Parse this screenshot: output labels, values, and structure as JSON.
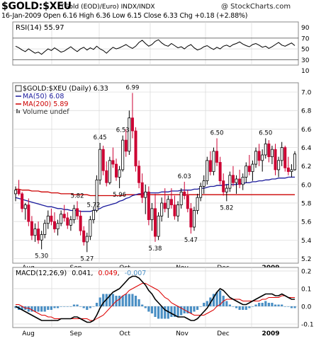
{
  "header": {
    "title": "$GOLD:$XEU",
    "subtitle": "(Gold (EOD)/Euro)  INDX/INDX",
    "copyright": "@ StockCharts.com",
    "ohlc": "16-Jan-2009   Open 6.16  High 6.36  Low 6.15  Close 6.33  Chg +0.18 (+2.88%)"
  },
  "colors": {
    "up": "#000000",
    "down": "#cc0033",
    "ma50": "#1a1a9c",
    "ma200": "#cc0000",
    "volume": "#666666",
    "macd_line": "#000000",
    "macd_signal": "#dd0000",
    "histogram": "#4a8fc4",
    "grid": "#d8d8d8"
  },
  "x_axis_labels": [
    "Aug",
    "Sep",
    "Oct",
    "Nov",
    "Dec",
    "2009"
  ],
  "chart_data": [
    {
      "type": "line",
      "name": "rsi_panel",
      "legend": "RSI(14) 55.97",
      "ylim": [
        20,
        100
      ],
      "ticks": [
        90,
        70,
        50,
        30,
        10
      ],
      "reference_lines": [
        70,
        30
      ],
      "values": [
        55,
        52,
        48,
        45,
        50,
        46,
        42,
        44,
        40,
        45,
        50,
        47,
        52,
        48,
        44,
        46,
        50,
        54,
        49,
        45,
        50,
        53,
        48,
        52,
        49,
        55,
        50,
        47,
        42,
        48,
        53,
        50,
        52,
        55,
        58,
        54,
        51,
        55,
        62,
        66,
        60,
        55,
        58,
        64,
        67,
        61,
        57,
        55,
        60,
        56,
        52,
        54,
        50,
        55,
        58,
        52,
        48,
        50,
        54,
        56,
        52,
        49,
        53,
        50,
        55,
        57,
        54,
        58,
        60,
        63,
        59,
        56,
        54,
        58,
        60,
        57,
        53,
        55,
        51,
        54,
        58,
        62,
        57,
        55,
        58,
        61,
        56
      ]
    },
    {
      "type": "candlestick",
      "name": "price_panel",
      "legend": {
        "symbol": "$GOLD:$XEU (Daily) 6.33",
        "ma50": "MA(50) 6.08",
        "ma200": "MA(200) 5.89",
        "volume": "Volume undef"
      },
      "ylim": [
        5.15,
        7.1
      ],
      "ticks": [
        7.0,
        6.8,
        6.6,
        6.4,
        6.2,
        6.0,
        5.8,
        5.6,
        5.4,
        5.2
      ],
      "annotations": [
        {
          "label": "5.30",
          "value": 5.3,
          "i": 8
        },
        {
          "label": "5.27",
          "value": 5.27,
          "i": 22
        },
        {
          "label": "5.82",
          "value": 5.82,
          "i": 19
        },
        {
          "label": "5.72",
          "value": 5.72,
          "i": 24
        },
        {
          "label": "6.45",
          "value": 6.45,
          "i": 26
        },
        {
          "label": "5.96",
          "value": 5.96,
          "i": 32
        },
        {
          "label": "6.53",
          "value": 6.53,
          "i": 33
        },
        {
          "label": "6.99",
          "value": 6.99,
          "i": 36
        },
        {
          "label": "5.38",
          "value": 5.38,
          "i": 43
        },
        {
          "label": "6.03",
          "value": 6.03,
          "i": 52
        },
        {
          "label": "5.47",
          "value": 5.47,
          "i": 54
        },
        {
          "label": "6.50",
          "value": 6.5,
          "i": 62
        },
        {
          "label": "5.82",
          "value": 5.82,
          "i": 65
        },
        {
          "label": "6.50",
          "value": 6.5,
          "i": 77
        }
      ],
      "ohlc": [
        [
          5.9,
          5.98,
          5.82,
          5.94
        ],
        [
          5.94,
          6.05,
          5.88,
          5.9
        ],
        [
          5.9,
          5.92,
          5.7,
          5.74
        ],
        [
          5.74,
          5.8,
          5.62,
          5.78
        ],
        [
          5.78,
          5.85,
          5.55,
          5.6
        ],
        [
          5.6,
          5.66,
          5.4,
          5.45
        ],
        [
          5.45,
          5.58,
          5.38,
          5.52
        ],
        [
          5.52,
          5.6,
          5.36,
          5.4
        ],
        [
          5.4,
          5.5,
          5.3,
          5.46
        ],
        [
          5.46,
          5.62,
          5.42,
          5.58
        ],
        [
          5.58,
          5.72,
          5.52,
          5.66
        ],
        [
          5.66,
          5.74,
          5.56,
          5.6
        ],
        [
          5.6,
          5.7,
          5.48,
          5.52
        ],
        [
          5.52,
          5.62,
          5.45,
          5.58
        ],
        [
          5.58,
          5.72,
          5.55,
          5.68
        ],
        [
          5.68,
          5.78,
          5.6,
          5.64
        ],
        [
          5.64,
          5.7,
          5.52,
          5.56
        ],
        [
          5.56,
          5.66,
          5.5,
          5.62
        ],
        [
          5.62,
          5.78,
          5.58,
          5.74
        ],
        [
          5.74,
          5.82,
          5.62,
          5.66
        ],
        [
          5.66,
          5.72,
          5.45,
          5.5
        ],
        [
          5.5,
          5.55,
          5.34,
          5.38
        ],
        [
          5.38,
          5.48,
          5.27,
          5.44
        ],
        [
          5.44,
          5.66,
          5.4,
          5.62
        ],
        [
          5.62,
          5.76,
          5.58,
          5.72
        ],
        [
          5.72,
          6.1,
          5.7,
          6.05
        ],
        [
          6.05,
          6.45,
          6.0,
          6.38
        ],
        [
          6.38,
          6.42,
          6.1,
          6.15
        ],
        [
          6.15,
          6.25,
          5.98,
          6.02
        ],
        [
          6.02,
          6.3,
          6.0,
          6.26
        ],
        [
          6.26,
          6.4,
          6.18,
          6.22
        ],
        [
          6.22,
          6.28,
          6.04,
          6.08
        ],
        [
          6.08,
          6.2,
          5.96,
          6.16
        ],
        [
          6.16,
          6.53,
          6.14,
          6.48
        ],
        [
          6.48,
          6.6,
          6.3,
          6.36
        ],
        [
          6.36,
          6.8,
          6.32,
          6.72
        ],
        [
          6.72,
          6.99,
          6.5,
          6.58
        ],
        [
          6.58,
          6.62,
          6.14,
          6.2
        ],
        [
          6.2,
          6.26,
          5.96,
          6.02
        ],
        [
          6.02,
          6.12,
          5.8,
          5.86
        ],
        [
          5.86,
          6.0,
          5.68,
          5.92
        ],
        [
          5.92,
          5.98,
          5.56,
          5.62
        ],
        [
          5.62,
          5.8,
          5.5,
          5.74
        ],
        [
          5.74,
          5.9,
          5.38,
          5.44
        ],
        [
          5.44,
          5.7,
          5.4,
          5.66
        ],
        [
          5.66,
          5.86,
          5.6,
          5.8
        ],
        [
          5.8,
          5.96,
          5.7,
          5.74
        ],
        [
          5.74,
          5.88,
          5.64,
          5.84
        ],
        [
          5.84,
          5.96,
          5.74,
          5.78
        ],
        [
          5.78,
          5.88,
          5.62,
          5.66
        ],
        [
          5.66,
          5.82,
          5.6,
          5.78
        ],
        [
          5.78,
          5.96,
          5.74,
          5.92
        ],
        [
          5.92,
          6.03,
          5.84,
          5.88
        ],
        [
          5.88,
          5.94,
          5.7,
          5.74
        ],
        [
          5.74,
          5.8,
          5.47,
          5.54
        ],
        [
          5.54,
          5.76,
          5.5,
          5.72
        ],
        [
          5.72,
          5.9,
          5.68,
          5.86
        ],
        [
          5.86,
          6.02,
          5.82,
          5.98
        ],
        [
          5.98,
          6.1,
          5.9,
          6.04
        ],
        [
          6.04,
          6.3,
          6.0,
          6.26
        ],
        [
          6.26,
          6.36,
          6.1,
          6.14
        ],
        [
          6.14,
          6.4,
          6.1,
          6.36
        ],
        [
          6.36,
          6.5,
          6.2,
          6.24
        ],
        [
          6.24,
          6.3,
          6.0,
          6.04
        ],
        [
          6.04,
          6.12,
          5.88,
          5.92
        ],
        [
          5.92,
          6.0,
          5.82,
          5.96
        ],
        [
          5.96,
          6.14,
          5.92,
          6.1
        ],
        [
          6.1,
          6.2,
          5.98,
          6.02
        ],
        [
          6.02,
          6.1,
          5.9,
          6.06
        ],
        [
          6.06,
          6.16,
          5.96,
          6.0
        ],
        [
          6.0,
          6.12,
          5.94,
          6.08
        ],
        [
          6.08,
          6.24,
          6.02,
          6.2
        ],
        [
          6.2,
          6.32,
          6.1,
          6.14
        ],
        [
          6.14,
          6.26,
          6.04,
          6.22
        ],
        [
          6.22,
          6.4,
          6.18,
          6.36
        ],
        [
          6.36,
          6.44,
          6.2,
          6.26
        ],
        [
          6.26,
          6.38,
          6.14,
          6.32
        ],
        [
          6.32,
          6.5,
          6.28,
          6.44
        ],
        [
          6.44,
          6.48,
          6.24,
          6.3
        ],
        [
          6.3,
          6.42,
          6.22,
          6.38
        ],
        [
          6.38,
          6.44,
          6.1,
          6.16
        ],
        [
          6.16,
          6.3,
          6.08,
          6.26
        ],
        [
          6.26,
          6.46,
          6.2,
          6.4
        ],
        [
          6.4,
          6.42,
          6.14,
          6.18
        ],
        [
          6.18,
          6.3,
          6.1,
          6.14
        ],
        [
          6.14,
          6.22,
          6.08,
          6.16
        ],
        [
          6.16,
          6.36,
          6.15,
          6.33
        ]
      ],
      "ma50": [
        5.86,
        5.85,
        5.84,
        5.83,
        5.82,
        5.81,
        5.8,
        5.79,
        5.78,
        5.77,
        5.76,
        5.76,
        5.75,
        5.74,
        5.74,
        5.73,
        5.73,
        5.72,
        5.72,
        5.72,
        5.71,
        5.71,
        5.71,
        5.71,
        5.72,
        5.73,
        5.74,
        5.76,
        5.77,
        5.78,
        5.79,
        5.8,
        5.82,
        5.83,
        5.85,
        5.86,
        5.88,
        5.89,
        5.9,
        5.9,
        5.91,
        5.91,
        5.91,
        5.91,
        5.91,
        5.92,
        5.92,
        5.92,
        5.93,
        5.93,
        5.93,
        5.94,
        5.94,
        5.94,
        5.94,
        5.95,
        5.95,
        5.96,
        5.96,
        5.97,
        5.98,
        5.98,
        5.99,
        5.99,
        5.99,
        6.0,
        6.0,
        6.0,
        6.0,
        6.01,
        6.01,
        6.02,
        6.02,
        6.03,
        6.03,
        6.04,
        6.04,
        6.05,
        6.05,
        6.06,
        6.06,
        6.07,
        6.07,
        6.07,
        6.08,
        6.08,
        6.08
      ],
      "ma200": [
        5.95,
        5.95,
        5.94,
        5.94,
        5.94,
        5.93,
        5.93,
        5.93,
        5.92,
        5.92,
        5.92,
        5.91,
        5.91,
        5.91,
        5.9,
        5.9,
        5.9,
        5.9,
        5.89,
        5.89,
        5.89,
        5.89,
        5.89,
        5.88,
        5.88,
        5.88,
        5.88,
        5.88,
        5.88,
        5.88,
        5.88,
        5.88,
        5.88,
        5.88,
        5.89,
        5.89,
        5.89,
        5.89,
        5.89,
        5.89,
        5.89,
        5.89,
        5.89,
        5.89,
        5.89,
        5.89,
        5.89,
        5.89,
        5.89,
        5.89,
        5.89,
        5.89,
        5.89,
        5.89,
        5.89,
        5.89,
        5.89,
        5.89,
        5.89,
        5.89,
        5.89,
        5.89,
        5.89,
        5.89,
        5.89,
        5.89,
        5.89,
        5.89,
        5.89,
        5.89,
        5.89,
        5.89,
        5.89,
        5.89,
        5.89,
        5.89,
        5.89,
        5.89,
        5.89,
        5.89,
        5.89,
        5.89,
        5.89,
        5.89,
        5.89,
        5.89,
        5.89
      ]
    },
    {
      "type": "line",
      "name": "macd_panel",
      "legend": {
        "label": "MACD(12,26,9)",
        "macd": "0.041",
        "signal": "0.049",
        "hist": "-0.007"
      },
      "ylim": [
        -0.12,
        0.22
      ],
      "ticks": [
        0.2,
        0.1,
        0.0,
        -0.1
      ],
      "macd": [
        0.0,
        -0.01,
        -0.02,
        -0.03,
        -0.04,
        -0.05,
        -0.06,
        -0.07,
        -0.08,
        -0.08,
        -0.08,
        -0.08,
        -0.08,
        -0.08,
        -0.07,
        -0.07,
        -0.07,
        -0.07,
        -0.06,
        -0.06,
        -0.07,
        -0.08,
        -0.09,
        -0.09,
        -0.08,
        -0.05,
        -0.01,
        0.02,
        0.04,
        0.06,
        0.08,
        0.09,
        0.1,
        0.12,
        0.14,
        0.16,
        0.17,
        0.17,
        0.16,
        0.14,
        0.12,
        0.09,
        0.07,
        0.04,
        0.02,
        0.0,
        -0.02,
        -0.03,
        -0.04,
        -0.05,
        -0.06,
        -0.06,
        -0.06,
        -0.07,
        -0.08,
        -0.08,
        -0.07,
        -0.05,
        -0.03,
        -0.01,
        0.02,
        0.05,
        0.08,
        0.1,
        0.09,
        0.07,
        0.05,
        0.04,
        0.03,
        0.02,
        0.01,
        0.01,
        0.02,
        0.03,
        0.04,
        0.05,
        0.06,
        0.07,
        0.07,
        0.07,
        0.06,
        0.06,
        0.07,
        0.06,
        0.05,
        0.04,
        0.04
      ],
      "signal": [
        0.01,
        0.01,
        0.0,
        -0.01,
        -0.01,
        -0.02,
        -0.03,
        -0.04,
        -0.05,
        -0.05,
        -0.06,
        -0.06,
        -0.07,
        -0.07,
        -0.07,
        -0.07,
        -0.07,
        -0.07,
        -0.07,
        -0.07,
        -0.07,
        -0.07,
        -0.07,
        -0.08,
        -0.08,
        -0.07,
        -0.06,
        -0.05,
        -0.03,
        -0.01,
        0.01,
        0.03,
        0.04,
        0.06,
        0.07,
        0.09,
        0.1,
        0.11,
        0.12,
        0.13,
        0.13,
        0.12,
        0.11,
        0.1,
        0.09,
        0.07,
        0.05,
        0.04,
        0.02,
        0.01,
        0.0,
        -0.01,
        -0.02,
        -0.03,
        -0.04,
        -0.05,
        -0.05,
        -0.05,
        -0.05,
        -0.04,
        -0.03,
        -0.02,
        0.0,
        0.01,
        0.03,
        0.04,
        0.04,
        0.04,
        0.04,
        0.04,
        0.03,
        0.03,
        0.03,
        0.03,
        0.03,
        0.03,
        0.04,
        0.04,
        0.05,
        0.05,
        0.05,
        0.05,
        0.06,
        0.06,
        0.05,
        0.05,
        0.05
      ]
    }
  ]
}
